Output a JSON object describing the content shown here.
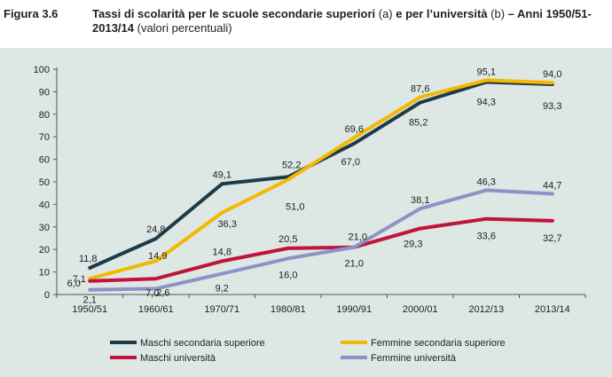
{
  "figure": {
    "label": "Figura 3.6",
    "title_bold_1": "Tassi di scolarità per le scuole secondarie superiori ",
    "title_light_1": "(a)",
    "title_bold_2": " e per l’università ",
    "title_light_2": "(b)",
    "title_bold_3": " – Anni 1950/51-2013/14",
    "title_light_3": " (valori percentuali)"
  },
  "chart_data": {
    "type": "line",
    "categories": [
      "1950/51",
      "1960/61",
      "1970/71",
      "1980/81",
      "1990/91",
      "2000/01",
      "2012/13",
      "2013/14"
    ],
    "ylim": [
      0,
      100
    ],
    "yticks": [
      0,
      10,
      20,
      30,
      40,
      50,
      60,
      70,
      80,
      90,
      100
    ],
    "grid": false,
    "legend_position": "bottom",
    "series": [
      {
        "name": "Maschi secondaria superiore",
        "color": "#1f3a4a",
        "values": [
          11.8,
          24.8,
          49.1,
          52.2,
          67.0,
          85.2,
          94.3,
          93.3
        ],
        "labels": [
          "11,8",
          "24,8",
          "49,1",
          "52,2",
          "67,0",
          "85,2",
          "94,3",
          "93,3"
        ]
      },
      {
        "name": "Femmine secondaria superiore",
        "color": "#f5b800",
        "values": [
          7.1,
          14.9,
          36.3,
          51.0,
          69.6,
          87.6,
          95.1,
          94.0
        ],
        "labels": [
          "7,1",
          "14,9",
          "36,3",
          "51,0",
          "69,6",
          "87,6",
          "95,1",
          "94,0"
        ]
      },
      {
        "name": "Maschi università",
        "color": "#c0143c",
        "values": [
          6.0,
          7.0,
          14.8,
          20.5,
          21.0,
          29.3,
          33.6,
          32.7
        ],
        "labels": [
          "6,0",
          "7,0",
          "14,8",
          "20,5",
          "21,0",
          "29,3",
          "33,6",
          "32,7"
        ]
      },
      {
        "name": "Femmine università",
        "color": "#8c93c9",
        "values": [
          2.1,
          2.6,
          9.2,
          16.0,
          21.0,
          38.1,
          46.3,
          44.7
        ],
        "labels": [
          "2,1",
          "2,6",
          "9,2",
          "16,0",
          "21,0",
          "38,1",
          "46,3",
          "44,7"
        ]
      }
    ]
  }
}
